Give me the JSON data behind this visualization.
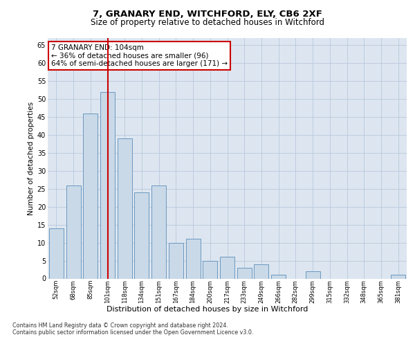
{
  "title1": "7, GRANARY END, WITCHFORD, ELY, CB6 2XF",
  "title2": "Size of property relative to detached houses in Witchford",
  "xlabel": "Distribution of detached houses by size in Witchford",
  "ylabel": "Number of detached properties",
  "categories": [
    "52sqm",
    "68sqm",
    "85sqm",
    "101sqm",
    "118sqm",
    "134sqm",
    "151sqm",
    "167sqm",
    "184sqm",
    "200sqm",
    "217sqm",
    "233sqm",
    "249sqm",
    "266sqm",
    "282sqm",
    "299sqm",
    "315sqm",
    "332sqm",
    "348sqm",
    "365sqm",
    "381sqm"
  ],
  "values": [
    14,
    26,
    46,
    52,
    39,
    24,
    26,
    10,
    11,
    5,
    6,
    3,
    4,
    1,
    0,
    2,
    0,
    0,
    0,
    0,
    1
  ],
  "bar_color": "#c9d9e8",
  "bar_edge_color": "#5b8db8",
  "vline_x": 3,
  "vline_color": "#cc0000",
  "annotation_text": "7 GRANARY END: 104sqm\n← 36% of detached houses are smaller (96)\n64% of semi-detached houses are larger (171) →",
  "annotation_box_color": "#ffffff",
  "annotation_box_edge": "#cc0000",
  "ylim": [
    0,
    67
  ],
  "yticks": [
    0,
    5,
    10,
    15,
    20,
    25,
    30,
    35,
    40,
    45,
    50,
    55,
    60,
    65
  ],
  "background_color": "#dde6f0",
  "footer1": "Contains HM Land Registry data © Crown copyright and database right 2024.",
  "footer2": "Contains public sector information licensed under the Open Government Licence v3.0."
}
